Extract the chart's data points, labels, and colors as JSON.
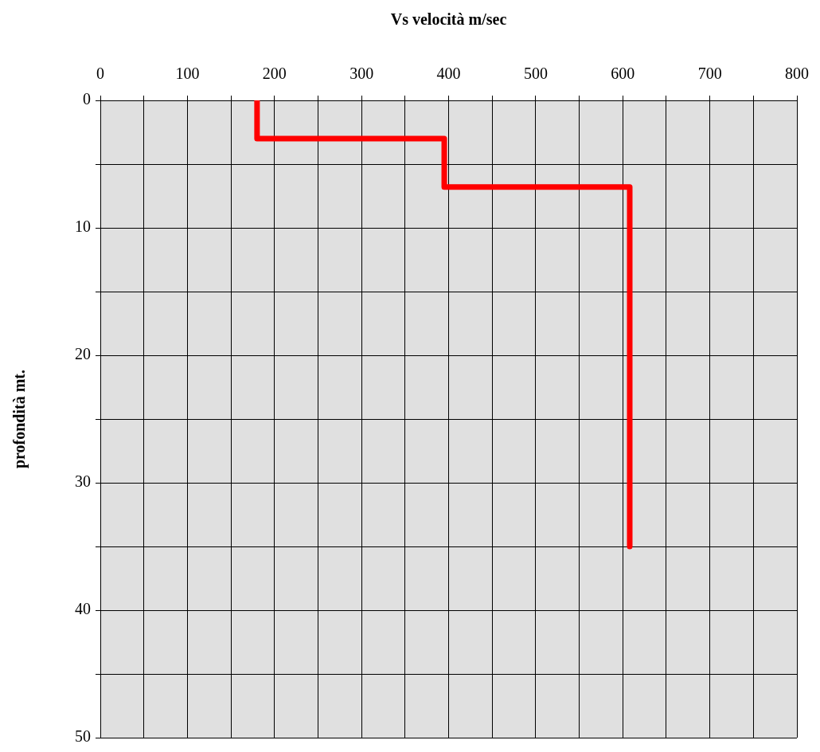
{
  "chart_data": {
    "type": "line",
    "xlabel": "Vs velocità m/sec",
    "ylabel": "profondità mt.",
    "xlim": [
      0,
      800
    ],
    "xticks": [
      0,
      {
        "value": 50,
        "label": null
      },
      100,
      {
        "value": 150,
        "label": null
      },
      200,
      {
        "value": 250,
        "label": null
      },
      300,
      {
        "value": 350,
        "label": null
      },
      400,
      {
        "value": 450,
        "label": null
      },
      500,
      {
        "value": 550,
        "label": null
      },
      600,
      {
        "value": 650,
        "label": null
      },
      700,
      {
        "value": 750,
        "label": null
      },
      800
    ],
    "ylim": [
      50,
      0
    ],
    "yticks": [
      0,
      {
        "value": 5,
        "label": null
      },
      10,
      {
        "value": 15,
        "label": null
      },
      20,
      {
        "value": 25,
        "label": null
      },
      30,
      {
        "value": 35,
        "label": null
      },
      40,
      {
        "value": 45,
        "label": null
      },
      50
    ],
    "grid": true,
    "legend": false,
    "marker": "none",
    "line_style": "solid",
    "series": [
      {
        "color": "#ff0000",
        "x": [
          180,
          180,
          395,
          395,
          608,
          608
        ],
        "values": [
          0,
          3,
          3,
          6.8,
          6.8,
          35
        ]
      }
    ]
  }
}
